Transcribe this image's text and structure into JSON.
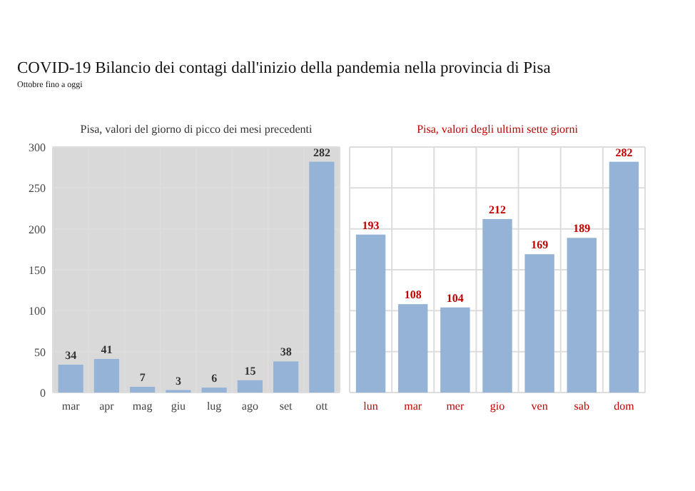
{
  "chart_data": [
    {
      "type": "bar",
      "title": "Pisa, valori del giorno di picco dei mesi precedenti",
      "categories": [
        "mar",
        "apr",
        "mag",
        "giu",
        "lug",
        "ago",
        "set",
        "ott"
      ],
      "values": [
        34,
        41,
        7,
        3,
        6,
        15,
        38,
        282
      ],
      "color": "#95b3d7",
      "ylim": [
        0,
        300
      ],
      "yticks": [
        0,
        50,
        100,
        150,
        200,
        250,
        300
      ],
      "grid": true,
      "data_labels": true,
      "annotations": [
        "COVID-19 Bilancio dei contagi dall'inizio della pandemia nella provincia di Pisa",
        "Ottobre fino a oggi"
      ]
    },
    {
      "type": "bar",
      "title": "Pisa, valori degli ultimi sette giorni",
      "categories": [
        "lun",
        "mar",
        "mer",
        "gio",
        "ven",
        "sab",
        "dom"
      ],
      "values": [
        193,
        108,
        104,
        212,
        169,
        189,
        282
      ],
      "color": "#95b3d7",
      "ylim": [
        0,
        300
      ],
      "yticks": [
        0,
        50,
        100,
        150,
        200,
        250,
        300
      ],
      "grid": true,
      "data_labels": true,
      "tick_labels": "x"
    }
  ]
}
